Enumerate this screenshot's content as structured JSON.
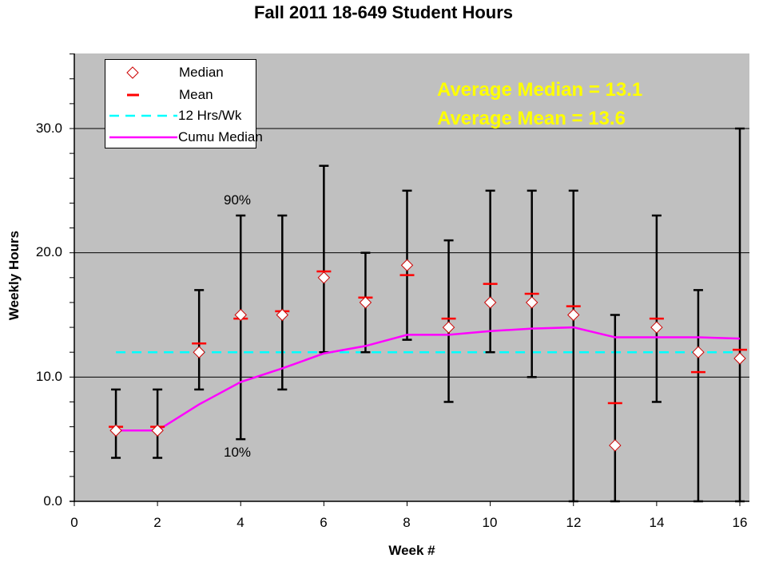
{
  "chart_data": {
    "type": "line",
    "title": "Fall 2011 18-649 Student Hours",
    "xlabel": "Week #",
    "ylabel": "Weekly Hours",
    "xlim": [
      0,
      16.5
    ],
    "ylim": [
      0,
      36
    ],
    "x_ticks": [
      "0",
      "2",
      "4",
      "6",
      "8",
      "10",
      "12",
      "14",
      "16"
    ],
    "y_ticks": [
      "0.0",
      "10.0",
      "20.0",
      "30.0"
    ],
    "grid": "horizontal major gridlines at 10, 20, 30",
    "legend_position": "upper left inside plot",
    "x": [
      1,
      2,
      3,
      4,
      5,
      6,
      7,
      8,
      9,
      10,
      11,
      12,
      13,
      14,
      15,
      16
    ],
    "series": [
      {
        "name": "Median",
        "style": "white diamond marker with red outline",
        "color": "#cc0000",
        "values": [
          5.7,
          5.7,
          12,
          15,
          15,
          18,
          16,
          19,
          14,
          16,
          16,
          15,
          4.5,
          14,
          12,
          11.5
        ]
      },
      {
        "name": "Mean",
        "style": "red horizontal dash marker",
        "color": "#ff0000",
        "values": [
          6.0,
          6.0,
          12.7,
          14.7,
          15.3,
          18.5,
          16.4,
          18.2,
          14.7,
          17.5,
          16.7,
          15.7,
          7.9,
          14.7,
          10.4,
          12.2
        ]
      },
      {
        "name": "12 Hrs/Wk",
        "style": "dashed line",
        "color": "#00ffff",
        "values": [
          12,
          12,
          12,
          12,
          12,
          12,
          12,
          12,
          12,
          12,
          12,
          12,
          12,
          12,
          12,
          12
        ]
      },
      {
        "name": "Cumu Median",
        "style": "solid line",
        "color": "#ff00ff",
        "values": [
          5.7,
          5.7,
          7.8,
          9.6,
          10.7,
          11.9,
          12.5,
          13.4,
          13.4,
          13.7,
          13.9,
          14.0,
          13.2,
          13.2,
          13.2,
          13.1
        ]
      },
      {
        "name": "10th percentile (error bar low)",
        "color": "#000000",
        "values": [
          3.5,
          3.5,
          9,
          5,
          9,
          12,
          12,
          13,
          8,
          12,
          10,
          0,
          0,
          8,
          0,
          0
        ]
      },
      {
        "name": "90th percentile (error bar high)",
        "color": "#000000",
        "values": [
          9,
          9,
          17,
          23,
          23,
          27,
          20,
          25,
          21,
          25,
          25,
          25,
          15,
          23,
          17,
          30
        ]
      }
    ],
    "annotations": [
      {
        "text": "Average Median = 13.1",
        "color": "#ffff00"
      },
      {
        "text": "Average Mean = 13.6",
        "color": "#ffff00"
      },
      {
        "text": "90%",
        "at_week": 4,
        "position": "above error bar"
      },
      {
        "text": "10%",
        "at_week": 4,
        "position": "below error bar"
      }
    ]
  },
  "colors": {
    "plot_bg": "#c0c0c0",
    "median_outline": "#cc0000",
    "mean": "#ff0000",
    "target_line": "#00ffff",
    "cumu_median": "#ff00ff",
    "annotation": "#ffff00"
  },
  "labels": {
    "title": "Fall 2011 18-649 Student Hours",
    "xlabel": "Week #",
    "ylabel": "Weekly Hours",
    "legend": [
      "Median",
      "Mean",
      "12 Hrs/Wk",
      "Cumu Median"
    ],
    "annot_median": "Average Median = 13.1",
    "annot_mean": "Average Mean = 13.6",
    "pct90": "90%",
    "pct10": "10%",
    "yticks": [
      "0.0",
      "10.0",
      "20.0",
      "30.0"
    ],
    "xticks": [
      "0",
      "2",
      "4",
      "6",
      "8",
      "10",
      "12",
      "14",
      "16"
    ]
  }
}
